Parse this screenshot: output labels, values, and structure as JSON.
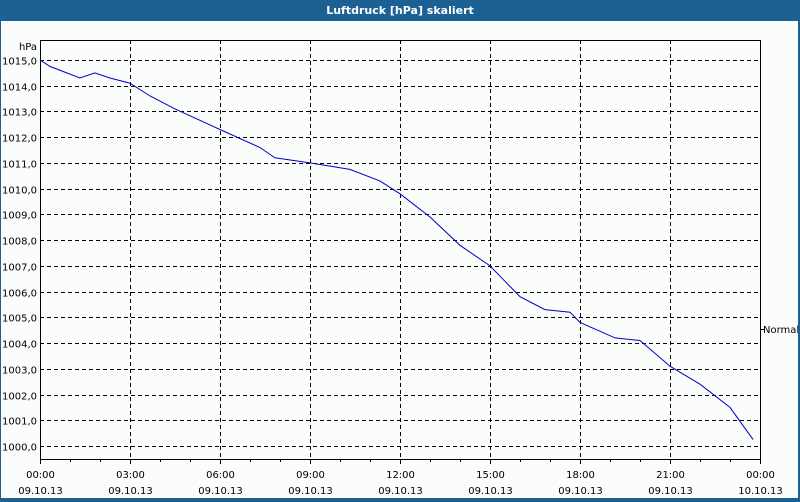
{
  "window": {
    "title": "Luftdruck [hPa] skaliert"
  },
  "colors": {
    "titlebar": "#1c6194",
    "background": "#fbfdfb",
    "series": "#0000c8",
    "grid": "#000000"
  },
  "chart_data": {
    "type": "line",
    "title": "Luftdruck [hPa] skaliert",
    "xlabel": "",
    "ylabel": "hPa",
    "ylim": [
      1000.0,
      1015.0
    ],
    "y_ticks": [
      "1015,0",
      "1014,0",
      "1013,0",
      "1012,0",
      "1011,0",
      "1010,0",
      "1009,0",
      "1008,0",
      "1007,0",
      "1006,0",
      "1005,0",
      "1004,0",
      "1003,0",
      "1002,0",
      "1001,0",
      "1000,0"
    ],
    "x_ticks": [
      {
        "time": "00:00",
        "date": "09.10.13"
      },
      {
        "time": "03:00",
        "date": "09.10.13"
      },
      {
        "time": "06:00",
        "date": "09.10.13"
      },
      {
        "time": "09:00",
        "date": "09.10.13"
      },
      {
        "time": "12:00",
        "date": "09.10.13"
      },
      {
        "time": "15:00",
        "date": "09.10.13"
      },
      {
        "time": "18:00",
        "date": "09.10.13"
      },
      {
        "time": "21:00",
        "date": "09.10.13"
      },
      {
        "time": "00:00",
        "date": "10.10.13"
      }
    ],
    "grid": true,
    "legend": {
      "position": "right",
      "entries": [
        "Normal"
      ]
    },
    "series": [
      {
        "name": "Normal",
        "x_hours": [
          0.0,
          0.33,
          1.33,
          1.83,
          2.33,
          3.0,
          3.67,
          4.5,
          6.0,
          7.33,
          7.83,
          9.0,
          10.33,
          11.33,
          12.0,
          13.0,
          14.0,
          15.0,
          16.0,
          16.83,
          17.67,
          18.0,
          19.17,
          20.0,
          21.0,
          22.0,
          23.0,
          23.77
        ],
        "values": [
          1015.0,
          1014.75,
          1014.3,
          1014.5,
          1014.3,
          1014.1,
          1013.6,
          1013.1,
          1012.3,
          1011.6,
          1011.2,
          1011.0,
          1010.75,
          1010.3,
          1009.8,
          1008.9,
          1007.8,
          1007.0,
          1005.8,
          1005.3,
          1005.2,
          1004.8,
          1004.2,
          1004.1,
          1003.1,
          1002.4,
          1001.5,
          1000.25
        ]
      }
    ]
  }
}
